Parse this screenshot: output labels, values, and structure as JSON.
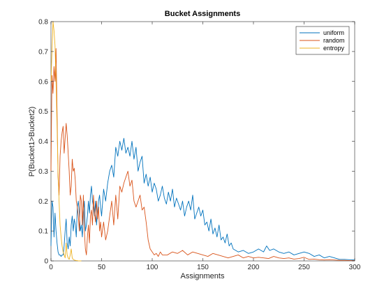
{
  "chart_data": {
    "type": "line",
    "title": "Bucket Assignments",
    "xlabel": "Assignments",
    "ylabel": "P(Bucket1>Bucket2)",
    "xlim": [
      0,
      300
    ],
    "ylim": [
      0,
      0.8
    ],
    "xticks": [
      0,
      50,
      100,
      150,
      200,
      250,
      300
    ],
    "yticks": [
      0,
      0.1,
      0.2,
      0.3,
      0.4,
      0.5,
      0.6,
      0.7,
      0.8
    ],
    "grid": false,
    "legend_position": "top-right",
    "series": [
      {
        "name": "uniform",
        "color": "#0072BD",
        "x": [
          0,
          1,
          2,
          3,
          4,
          5,
          6,
          7,
          8,
          9,
          10,
          11,
          12,
          13,
          14,
          15,
          16,
          17,
          18,
          19,
          20,
          21,
          22,
          23,
          24,
          25,
          26,
          27,
          28,
          29,
          30,
          31,
          32,
          33,
          34,
          35,
          36,
          37,
          38,
          39,
          40,
          41,
          42,
          43,
          44,
          45,
          46,
          47,
          48,
          49,
          50,
          52,
          54,
          56,
          58,
          60,
          62,
          64,
          66,
          68,
          70,
          72,
          74,
          76,
          78,
          80,
          82,
          84,
          86,
          88,
          90,
          92,
          94,
          96,
          98,
          100,
          102,
          104,
          106,
          108,
          110,
          112,
          114,
          116,
          118,
          120,
          122,
          124,
          126,
          128,
          130,
          132,
          134,
          136,
          138,
          140,
          142,
          144,
          146,
          148,
          150,
          152,
          154,
          156,
          158,
          160,
          162,
          164,
          166,
          168,
          170,
          172,
          174,
          176,
          178,
          180,
          185,
          190,
          195,
          200,
          205,
          210,
          213,
          216,
          220,
          225,
          230,
          235,
          240,
          245,
          250,
          255,
          260,
          265,
          270,
          275,
          280,
          285,
          290,
          295,
          300
        ],
        "y": [
          0.05,
          0.2,
          0.18,
          0.08,
          0.16,
          0.1,
          0.06,
          0.03,
          0.02,
          0.02,
          0.015,
          0.02,
          0.02,
          0.05,
          0.1,
          0.14,
          0.06,
          0.04,
          0.08,
          0.05,
          0.12,
          0.15,
          0.1,
          0.14,
          0.12,
          0.08,
          0.18,
          0.2,
          0.16,
          0.1,
          0.12,
          0.08,
          0.16,
          0.2,
          0.1,
          0.12,
          0.15,
          0.2,
          0.16,
          0.22,
          0.25,
          0.2,
          0.18,
          0.15,
          0.2,
          0.12,
          0.16,
          0.2,
          0.22,
          0.18,
          0.15,
          0.24,
          0.2,
          0.26,
          0.3,
          0.32,
          0.28,
          0.38,
          0.35,
          0.4,
          0.37,
          0.41,
          0.36,
          0.38,
          0.35,
          0.4,
          0.34,
          0.38,
          0.3,
          0.33,
          0.35,
          0.26,
          0.29,
          0.25,
          0.28,
          0.23,
          0.26,
          0.24,
          0.2,
          0.22,
          0.25,
          0.21,
          0.19,
          0.23,
          0.2,
          0.24,
          0.18,
          0.21,
          0.19,
          0.17,
          0.2,
          0.15,
          0.18,
          0.2,
          0.17,
          0.22,
          0.14,
          0.16,
          0.18,
          0.15,
          0.17,
          0.12,
          0.13,
          0.1,
          0.14,
          0.09,
          0.11,
          0.08,
          0.12,
          0.07,
          0.08,
          0.06,
          0.09,
          0.05,
          0.06,
          0.04,
          0.03,
          0.035,
          0.025,
          0.03,
          0.04,
          0.03,
          0.05,
          0.035,
          0.04,
          0.03,
          0.025,
          0.03,
          0.02,
          0.025,
          0.03,
          0.025,
          0.015,
          0.02,
          0.01,
          0.015,
          0.01,
          0.005,
          0.005,
          0.004,
          0.003
        ]
      },
      {
        "name": "random",
        "color": "#D95319",
        "x": [
          0,
          1,
          2,
          3,
          4,
          5,
          6,
          7,
          8,
          9,
          10,
          11,
          12,
          13,
          14,
          15,
          16,
          17,
          18,
          19,
          20,
          21,
          22,
          23,
          24,
          25,
          26,
          27,
          28,
          29,
          30,
          31,
          32,
          33,
          34,
          35,
          36,
          37,
          38,
          39,
          40,
          41,
          42,
          43,
          44,
          45,
          46,
          47,
          48,
          49,
          50,
          52,
          54,
          56,
          58,
          60,
          62,
          64,
          66,
          68,
          70,
          72,
          74,
          76,
          78,
          80,
          82,
          84,
          86,
          88,
          90,
          92,
          94,
          96,
          98,
          100,
          102,
          104,
          106,
          108,
          110,
          115,
          120,
          125,
          130,
          135,
          140,
          145,
          150,
          155,
          160,
          165,
          170,
          175,
          180,
          185,
          190,
          195,
          200,
          205,
          210,
          215,
          220,
          225,
          230,
          235,
          240,
          245,
          250,
          255,
          260,
          265,
          270,
          275,
          280,
          285,
          290,
          295,
          300
        ],
        "y": [
          0.3,
          0.62,
          0.56,
          0.65,
          0.6,
          0.71,
          0.5,
          0.28,
          0.22,
          0.35,
          0.4,
          0.43,
          0.45,
          0.36,
          0.41,
          0.46,
          0.42,
          0.36,
          0.3,
          0.22,
          0.25,
          0.34,
          0.3,
          0.31,
          0.27,
          0.2,
          0.18,
          0.15,
          0.1,
          0.22,
          0.2,
          0.12,
          0.22,
          0.1,
          0.04,
          0.02,
          0.08,
          0.12,
          0.06,
          0.15,
          0.17,
          0.12,
          0.22,
          0.16,
          0.13,
          0.2,
          0.14,
          0.18,
          0.1,
          0.13,
          0.08,
          0.13,
          0.07,
          0.1,
          0.15,
          0.2,
          0.12,
          0.22,
          0.14,
          0.25,
          0.23,
          0.26,
          0.28,
          0.3,
          0.25,
          0.27,
          0.2,
          0.18,
          0.2,
          0.22,
          0.17,
          0.18,
          0.13,
          0.07,
          0.04,
          0.03,
          0.02,
          0.025,
          0.015,
          0.03,
          0.02,
          0.02,
          0.03,
          0.025,
          0.035,
          0.02,
          0.03,
          0.025,
          0.02,
          0.015,
          0.025,
          0.02,
          0.015,
          0.01,
          0.015,
          0.02,
          0.01,
          0.015,
          0.01,
          0.012,
          0.01,
          0.008,
          0.015,
          0.01,
          0.008,
          0.01,
          0.006,
          0.008,
          0.012,
          0.005,
          0.006,
          0.004,
          0.003,
          0.004,
          0.003,
          0.002,
          0.002,
          0.001,
          0.001
        ]
      },
      {
        "name": "entropy",
        "color": "#EDB120",
        "x": [
          0,
          1,
          2,
          3,
          4,
          5,
          6,
          7,
          8,
          9,
          10,
          11,
          12,
          13,
          14,
          15,
          16,
          17,
          18,
          19,
          20,
          21,
          22,
          23,
          24,
          25,
          26,
          27,
          28,
          30
        ],
        "y": [
          0.6,
          0.7,
          0.8,
          0.77,
          0.72,
          0.6,
          0.45,
          0.3,
          0.2,
          0.12,
          0.08,
          0.05,
          0.03,
          0.02,
          0.01,
          0.06,
          0.02,
          0.01,
          0.005,
          0.02,
          0.04,
          0.01,
          0.005,
          0.003,
          0.002,
          0.001,
          0.001,
          0.0,
          0.0,
          0.0
        ]
      }
    ]
  }
}
